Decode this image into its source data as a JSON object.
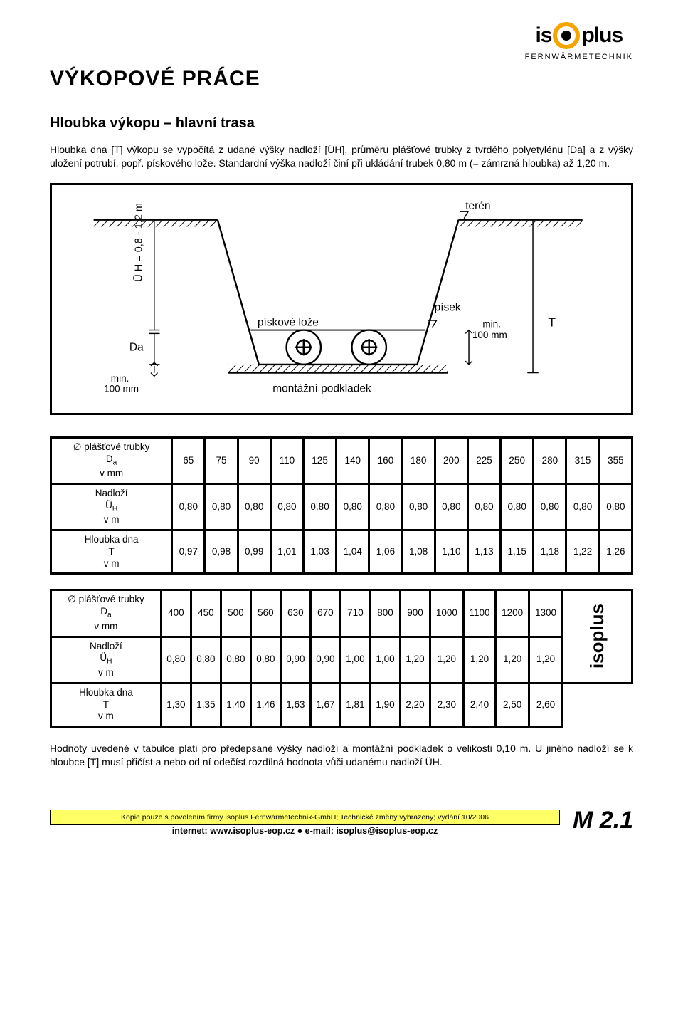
{
  "logo": {
    "left": "is",
    "right": "plus",
    "sub": "FERNWÄRMETECHNIK"
  },
  "title": "VÝKOPOVÉ  PRÁCE",
  "subtitle": "Hloubka výkopu – hlavní trasa",
  "intro": "Hloubka dna [T] výkopu se vypočítá z udané výšky nadloží [ÜH], průměru plášťové trubky z tvrdého polyetylénu [Da] a z výšky uložení potrubí, popř. pískového lože. Standardní výška nadloží činí při ukládání trubek 0,80 m (= zámrzná hloubka) až 1,20 m.",
  "diagram": {
    "labels": {
      "teren": "terén",
      "uh": "Ü H = 0,8 - 1,2 m",
      "piskove_loze": "pískové lože",
      "pisek": "písek",
      "min100a": "min.\n100 mm",
      "T": "T",
      "Da": "Da",
      "min100b": "min.\n100 mm",
      "montazni": "montážní podkladek"
    },
    "colors": {
      "stroke": "#000000",
      "hatch": "#000000",
      "bg": "#ffffff"
    }
  },
  "table1": {
    "row_labels": [
      "∅ plášťové trubky\nDa\nv mm",
      "Nadloží\nÜH\nv m",
      "Hloubka dna\nT\nv m"
    ],
    "rows": [
      [
        "65",
        "75",
        "90",
        "110",
        "125",
        "140",
        "160",
        "180",
        "200",
        "225",
        "250",
        "280",
        "315",
        "355"
      ],
      [
        "0,80",
        "0,80",
        "0,80",
        "0,80",
        "0,80",
        "0,80",
        "0,80",
        "0,80",
        "0,80",
        "0,80",
        "0,80",
        "0,80",
        "0,80",
        "0,80"
      ],
      [
        "0,97",
        "0,98",
        "0,99",
        "1,01",
        "1,03",
        "1,04",
        "1,06",
        "1,08",
        "1,10",
        "1,13",
        "1,15",
        "1,18",
        "1,22",
        "1,26"
      ]
    ]
  },
  "table2": {
    "row_labels": [
      "∅ plášťové trubky\nDa\nv mm",
      "Nadloží\nÜH\nv m",
      "Hloubka dna\nT\nv m"
    ],
    "rows": [
      [
        "400",
        "450",
        "500",
        "560",
        "630",
        "670",
        "710",
        "800",
        "900",
        "1000",
        "1100",
        "1200",
        "1300"
      ],
      [
        "0,80",
        "0,80",
        "0,80",
        "0,80",
        "0,90",
        "0,90",
        "1,00",
        "1,00",
        "1,20",
        "1,20",
        "1,20",
        "1,20",
        "1,20"
      ],
      [
        "1,30",
        "1,35",
        "1,40",
        "1,46",
        "1,63",
        "1,67",
        "1,81",
        "1,90",
        "2,20",
        "2,30",
        "2,40",
        "2,50",
        "2,60"
      ]
    ],
    "sidebar": "isoplus"
  },
  "note": "Hodnoty uvedené v tabulce platí pro předepsané výšky nadloží a montážní podkladek o velikosti 0,10 m. U jiného nadloží se k hloubce [T] musí přičíst a nebo od ní odečíst rozdílná hodnota vůči udanému nadloží ÜH.",
  "footer": {
    "copy": "Kopie pouze s povolením firmy isoplus Fernwärmetechnik-GmbH; Technické změny vyhrazeny; vydání 10/2006",
    "contact": "internet: www.isoplus-eop.cz  ●  e-mail: isoplus@isoplus-eop.cz",
    "page": "M 2.1"
  }
}
